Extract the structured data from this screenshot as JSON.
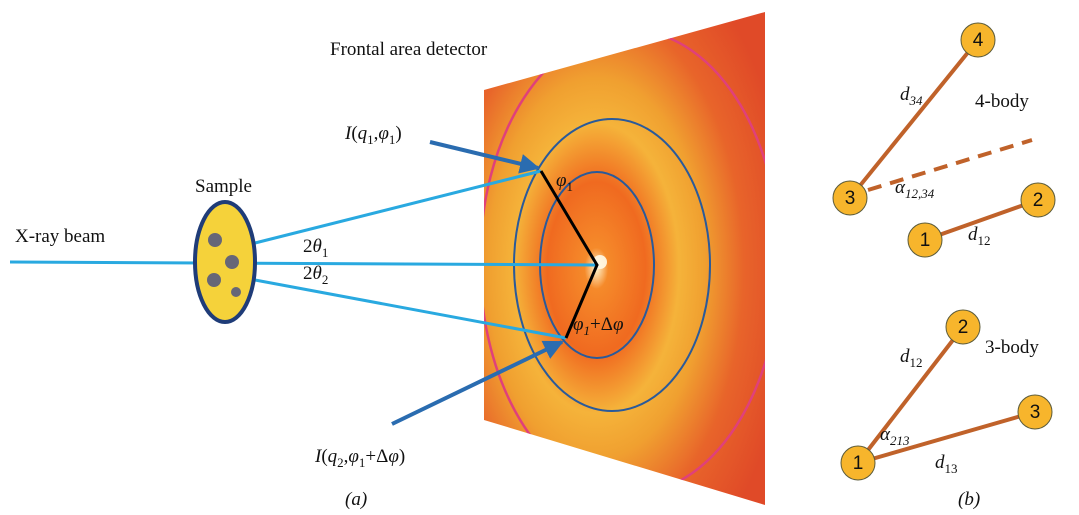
{
  "panel_a": {
    "detector_label": "Frontal area detector",
    "sample_label": "Sample",
    "beam_label": "X-ray beam",
    "angle_1": [
      {
        "t": "2"
      },
      {
        "t": "θ",
        "i": true
      },
      {
        "t": "1",
        "sub": true
      }
    ],
    "angle_2": [
      {
        "t": "2"
      },
      {
        "t": "θ",
        "i": true
      },
      {
        "t": "2",
        "sub": true
      }
    ],
    "intensity_1": [
      {
        "t": "I",
        "i": true
      },
      {
        "t": "("
      },
      {
        "t": "q",
        "i": true
      },
      {
        "t": "1",
        "sub": true
      },
      {
        "t": ","
      },
      {
        "t": "φ",
        "i": true
      },
      {
        "t": "1",
        "sub": true
      },
      {
        "t": ")"
      }
    ],
    "intensity_2": [
      {
        "t": "I",
        "i": true
      },
      {
        "t": "("
      },
      {
        "t": "q",
        "i": true
      },
      {
        "t": "2",
        "sub": true
      },
      {
        "t": ","
      },
      {
        "t": "φ",
        "i": true
      },
      {
        "t": "1",
        "sub": true
      },
      {
        "t": "+Δ"
      },
      {
        "t": "φ",
        "i": true
      },
      {
        "t": ")"
      }
    ],
    "phi_1": [
      {
        "t": "φ",
        "i": true
      },
      {
        "t": "1",
        "sub": true
      }
    ],
    "phi_2": [
      {
        "t": "φ",
        "i": true
      },
      {
        "t": "1",
        "sub": true,
        "i": true
      },
      {
        "t": "+Δ"
      },
      {
        "t": "φ",
        "i": true
      }
    ],
    "caption": "(a)"
  },
  "panel_b": {
    "four_body": {
      "nodes": [
        "4",
        "3",
        "2",
        "1"
      ],
      "d_34": [
        {
          "t": "d",
          "i": true
        },
        {
          "t": "34",
          "sub": true,
          "i": true
        }
      ],
      "alpha": [
        {
          "t": "α",
          "i": true
        },
        {
          "t": "12,34",
          "sub": true,
          "i": true
        }
      ],
      "d_12": [
        {
          "t": "d",
          "i": true
        },
        {
          "t": "12",
          "sub": true
        }
      ],
      "label": "4-body"
    },
    "three_body": {
      "nodes": [
        "2",
        "3",
        "1"
      ],
      "d_12": [
        {
          "t": "d",
          "i": true
        },
        {
          "t": "12",
          "sub": true
        }
      ],
      "alpha": [
        {
          "t": "α",
          "i": true
        },
        {
          "t": "213",
          "sub": true,
          "i": true
        }
      ],
      "d_13": [
        {
          "t": "d",
          "i": true
        },
        {
          "t": "13",
          "sub": true
        }
      ],
      "label": "3-body"
    },
    "caption": "(b)"
  }
}
